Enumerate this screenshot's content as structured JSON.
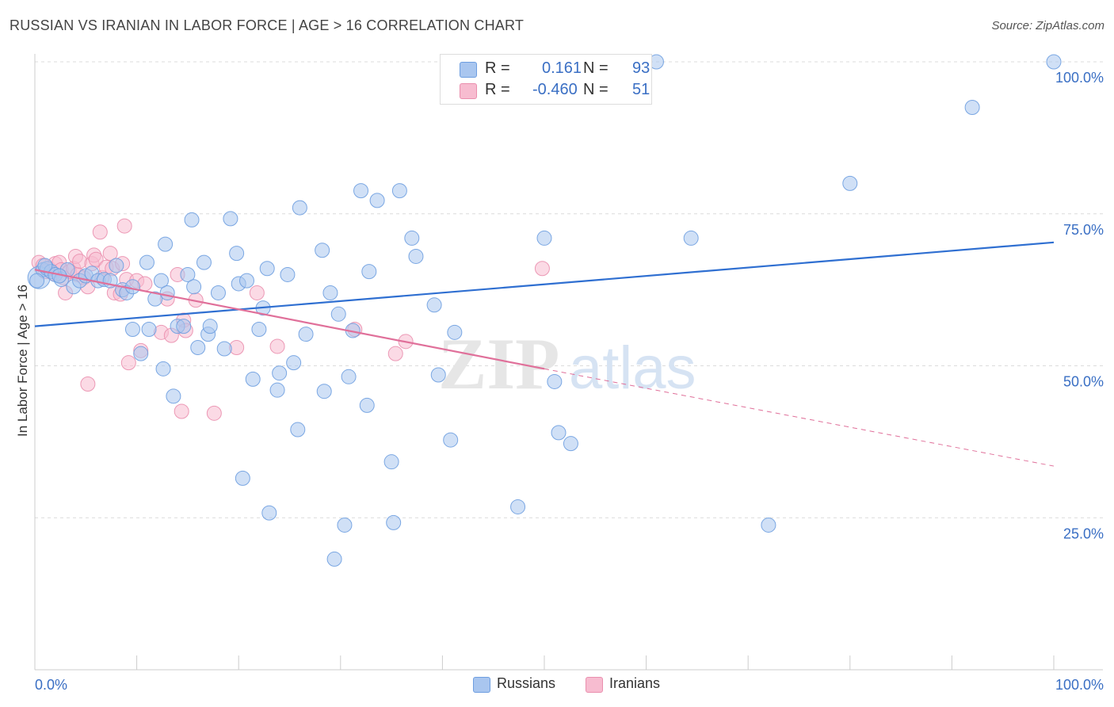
{
  "title": "RUSSIAN VS IRANIAN IN LABOR FORCE | AGE > 16 CORRELATION CHART",
  "source": "Source: ZipAtlas.com",
  "watermark": {
    "zip": "ZIP",
    "atlas": "atlas"
  },
  "legend": {
    "r_label": "R =",
    "n_label": "N =",
    "rows": [
      {
        "r": "0.161",
        "n": "93",
        "color": "#a9c6ef",
        "border": "#6e9ee0"
      },
      {
        "r": "-0.460",
        "n": "51",
        "color": "#f7bcd0",
        "border": "#ea8fae"
      }
    ]
  },
  "bottom_legend": [
    "Russians",
    "Iranians"
  ],
  "chart_data": {
    "type": "scatter",
    "title": "RUSSIAN VS IRANIAN IN LABOR FORCE | AGE > 16 CORRELATION CHART",
    "xlabel": "",
    "ylabel": "In Labor Force | Age > 16",
    "xlim": [
      0,
      100
    ],
    "ylim": [
      0,
      100
    ],
    "x_tick_labels": [
      "0.0%",
      "100.0%"
    ],
    "y_ticks": [
      25,
      50,
      75,
      100
    ],
    "y_tick_labels": [
      "25.0%",
      "50.0%",
      "75.0%",
      "100.0%"
    ],
    "grid": true,
    "legend_position": "top-center",
    "series": [
      {
        "name": "Russians",
        "color": "#a9c6ef",
        "edge": "#6e9ee0",
        "trend": {
          "x": [
            0,
            100
          ],
          "y": [
            56.5,
            70.3
          ],
          "color": "#2f6fd1"
        },
        "points": [
          [
            0.4,
            64.5
          ],
          [
            0.8,
            65.8
          ],
          [
            1.2,
            66.0
          ],
          [
            1.6,
            65.5
          ],
          [
            2.0,
            65.0
          ],
          [
            2.6,
            64.2
          ],
          [
            3.2,
            65.8
          ],
          [
            3.8,
            63.0
          ],
          [
            4.4,
            64.0
          ],
          [
            5.0,
            64.8
          ],
          [
            5.6,
            65.2
          ],
          [
            6.2,
            64.0
          ],
          [
            6.8,
            64.2
          ],
          [
            7.4,
            64.0
          ],
          [
            8.0,
            66.5
          ],
          [
            8.6,
            62.5
          ],
          [
            9.0,
            62.0
          ],
          [
            9.6,
            63.0
          ],
          [
            9.6,
            56.0
          ],
          [
            10.4,
            52.0
          ],
          [
            11.0,
            67.0
          ],
          [
            11.2,
            56.0
          ],
          [
            11.8,
            61.0
          ],
          [
            12.4,
            64.0
          ],
          [
            12.6,
            49.5
          ],
          [
            12.8,
            70.0
          ],
          [
            13.0,
            62.0
          ],
          [
            13.6,
            45.0
          ],
          [
            14.0,
            56.5
          ],
          [
            14.6,
            56.5
          ],
          [
            15.0,
            65.0
          ],
          [
            15.4,
            74.0
          ],
          [
            15.6,
            63.0
          ],
          [
            16.0,
            53.0
          ],
          [
            16.6,
            67.0
          ],
          [
            17.0,
            55.2
          ],
          [
            17.2,
            56.5
          ],
          [
            18.0,
            62.0
          ],
          [
            18.6,
            52.8
          ],
          [
            19.2,
            74.2
          ],
          [
            19.8,
            68.5
          ],
          [
            20.0,
            63.5
          ],
          [
            20.4,
            31.5
          ],
          [
            20.8,
            64.0
          ],
          [
            21.4,
            47.8
          ],
          [
            22.0,
            56.0
          ],
          [
            22.4,
            59.5
          ],
          [
            22.8,
            66.0
          ],
          [
            23.0,
            25.8
          ],
          [
            23.8,
            46.0
          ],
          [
            24.0,
            48.8
          ],
          [
            24.8,
            65.0
          ],
          [
            25.4,
            50.5
          ],
          [
            25.8,
            39.5
          ],
          [
            26.0,
            76.0
          ],
          [
            26.6,
            55.2
          ],
          [
            28.2,
            69.0
          ],
          [
            28.4,
            45.8
          ],
          [
            29.0,
            62.0
          ],
          [
            29.4,
            18.2
          ],
          [
            29.8,
            58.5
          ],
          [
            30.4,
            23.8
          ],
          [
            30.8,
            48.2
          ],
          [
            31.2,
            55.8
          ],
          [
            32.0,
            78.8
          ],
          [
            32.6,
            43.5
          ],
          [
            32.8,
            65.5
          ],
          [
            33.6,
            77.2
          ],
          [
            35.0,
            34.2
          ],
          [
            35.2,
            24.2
          ],
          [
            35.8,
            78.8
          ],
          [
            37.0,
            71.0
          ],
          [
            37.4,
            68.0
          ],
          [
            39.2,
            60.0
          ],
          [
            39.6,
            48.5
          ],
          [
            40.8,
            37.8
          ],
          [
            41.2,
            55.5
          ],
          [
            47.4,
            26.8
          ],
          [
            50.0,
            71.0
          ],
          [
            51.0,
            47.4
          ],
          [
            51.4,
            39.0
          ],
          [
            52.6,
            37.2
          ],
          [
            53.0,
            100.0
          ],
          [
            61.0,
            100.0
          ],
          [
            64.4,
            71.0
          ],
          [
            72.0,
            23.8
          ],
          [
            80.0,
            80.0
          ],
          [
            92.0,
            92.5
          ],
          [
            100.0,
            100.0
          ],
          [
            52.8,
            100.0
          ],
          [
            0.2,
            64.0
          ],
          [
            1.0,
            66.5
          ],
          [
            2.4,
            64.8
          ]
        ],
        "sizes_note": "one point rendered large at x≈0"
      },
      {
        "name": "Iranians",
        "color": "#f7bcd0",
        "edge": "#ea8fae",
        "trend": {
          "x": [
            0,
            50,
            100
          ],
          "y": [
            65.8,
            49.5,
            33.5
          ],
          "color": "#e0709a",
          "solid_until": 50
        },
        "points": [
          [
            0.4,
            67.0
          ],
          [
            0.8,
            66.5
          ],
          [
            1.0,
            65.5
          ],
          [
            1.4,
            66.0
          ],
          [
            1.8,
            65.2
          ],
          [
            2.0,
            66.8
          ],
          [
            2.4,
            67.0
          ],
          [
            2.6,
            65.8
          ],
          [
            2.8,
            64.5
          ],
          [
            3.0,
            62.0
          ],
          [
            3.4,
            65.5
          ],
          [
            3.8,
            66.0
          ],
          [
            4.0,
            68.0
          ],
          [
            4.2,
            65.0
          ],
          [
            4.4,
            67.2
          ],
          [
            4.8,
            64.5
          ],
          [
            5.2,
            63.0
          ],
          [
            5.2,
            47.0
          ],
          [
            5.6,
            66.8
          ],
          [
            5.8,
            68.2
          ],
          [
            6.0,
            67.5
          ],
          [
            6.4,
            72.0
          ],
          [
            6.6,
            64.5
          ],
          [
            7.0,
            66.2
          ],
          [
            7.4,
            68.5
          ],
          [
            7.6,
            66.0
          ],
          [
            7.8,
            62.0
          ],
          [
            8.4,
            61.8
          ],
          [
            8.6,
            66.8
          ],
          [
            8.8,
            73.0
          ],
          [
            9.0,
            64.2
          ],
          [
            9.2,
            50.5
          ],
          [
            10.0,
            64.0
          ],
          [
            10.4,
            52.5
          ],
          [
            10.8,
            63.5
          ],
          [
            12.4,
            55.5
          ],
          [
            13.0,
            61.0
          ],
          [
            13.4,
            55.0
          ],
          [
            14.0,
            65.0
          ],
          [
            14.4,
            42.5
          ],
          [
            14.6,
            57.5
          ],
          [
            14.8,
            55.8
          ],
          [
            15.8,
            60.8
          ],
          [
            17.6,
            42.2
          ],
          [
            19.8,
            53.0
          ],
          [
            21.8,
            62.0
          ],
          [
            23.8,
            53.2
          ],
          [
            31.4,
            56.0
          ],
          [
            35.4,
            52.0
          ],
          [
            36.4,
            54.0
          ],
          [
            49.8,
            66.0
          ]
        ]
      }
    ]
  }
}
